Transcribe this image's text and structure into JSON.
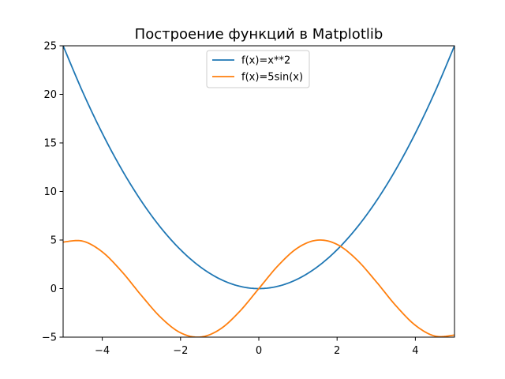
{
  "chart_data": {
    "type": "line",
    "title": "Построение функций в Matplotlib",
    "xlabel": "",
    "ylabel": "",
    "xlim": [
      -5,
      5
    ],
    "ylim": [
      -5,
      25
    ],
    "xticks": [
      -4,
      -2,
      0,
      2,
      4
    ],
    "xtick_labels": [
      "−4",
      "−2",
      "0",
      "2",
      "4"
    ],
    "yticks": [
      -5,
      0,
      5,
      10,
      15,
      20,
      25
    ],
    "ytick_labels": [
      "−5",
      "0",
      "5",
      "10",
      "15",
      "20",
      "25"
    ],
    "grid": false,
    "legend_placement": "upper center",
    "series": [
      {
        "name": "f(x)=x**2",
        "color": "#1f77b4",
        "x": [
          -5.0,
          -4.5,
          -4.0,
          -3.5,
          -3.0,
          -2.5,
          -2.0,
          -1.5,
          -1.0,
          -0.5,
          0.0,
          0.5,
          1.0,
          1.5,
          2.0,
          2.5,
          3.0,
          3.5,
          4.0,
          4.5,
          5.0
        ],
        "y": [
          25.0,
          20.25,
          16.0,
          12.25,
          9.0,
          6.25,
          4.0,
          2.25,
          1.0,
          0.25,
          0.0,
          0.25,
          1.0,
          2.25,
          4.0,
          6.25,
          9.0,
          12.25,
          16.0,
          20.25,
          25.0
        ]
      },
      {
        "name": "f(x)=5sin(x)",
        "color": "#ff7f0e",
        "x": [
          -5.0,
          -4.5,
          -4.0,
          -3.5,
          -3.0,
          -2.5,
          -2.0,
          -1.5,
          -1.0,
          -0.5,
          0.0,
          0.5,
          1.0,
          1.5,
          2.0,
          2.5,
          3.0,
          3.5,
          4.0,
          4.5,
          5.0
        ],
        "y": [
          4.79,
          4.89,
          3.78,
          1.75,
          -0.71,
          -2.99,
          -4.55,
          -4.99,
          -4.21,
          -2.4,
          0.0,
          2.4,
          4.21,
          4.99,
          4.55,
          2.99,
          0.71,
          -1.75,
          -3.78,
          -4.89,
          -4.79
        ]
      }
    ]
  }
}
